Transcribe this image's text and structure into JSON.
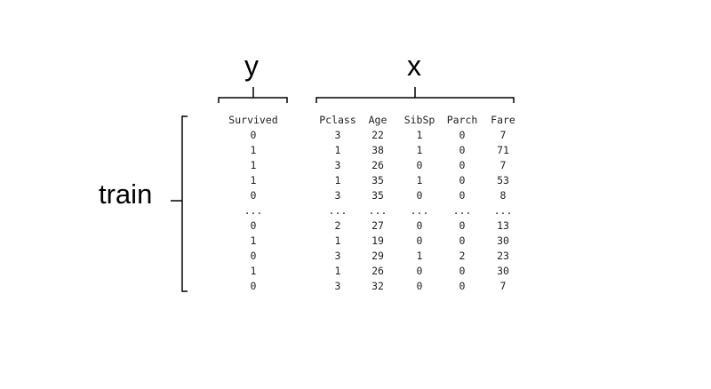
{
  "labels": {
    "y": "y",
    "x": "x",
    "train": "train"
  },
  "table": {
    "columns": [
      "Survived",
      "Pclass",
      "Age",
      "SibSp",
      "Parch",
      "Fare"
    ],
    "rows": [
      [
        "0",
        "3",
        "22",
        "1",
        "0",
        "7"
      ],
      [
        "1",
        "1",
        "38",
        "1",
        "0",
        "71"
      ],
      [
        "1",
        "3",
        "26",
        "0",
        "0",
        "7"
      ],
      [
        "1",
        "1",
        "35",
        "1",
        "0",
        "53"
      ],
      [
        "0",
        "3",
        "35",
        "0",
        "0",
        "8"
      ],
      [
        "...",
        "...",
        "...",
        "...",
        "...",
        "..."
      ],
      [
        "0",
        "2",
        "27",
        "0",
        "0",
        "13"
      ],
      [
        "1",
        "1",
        "19",
        "0",
        "0",
        "30"
      ],
      [
        "0",
        "3",
        "29",
        "1",
        "2",
        "23"
      ],
      [
        "1",
        "1",
        "26",
        "0",
        "0",
        "30"
      ],
      [
        "0",
        "3",
        "32",
        "0",
        "0",
        "7"
      ]
    ]
  }
}
